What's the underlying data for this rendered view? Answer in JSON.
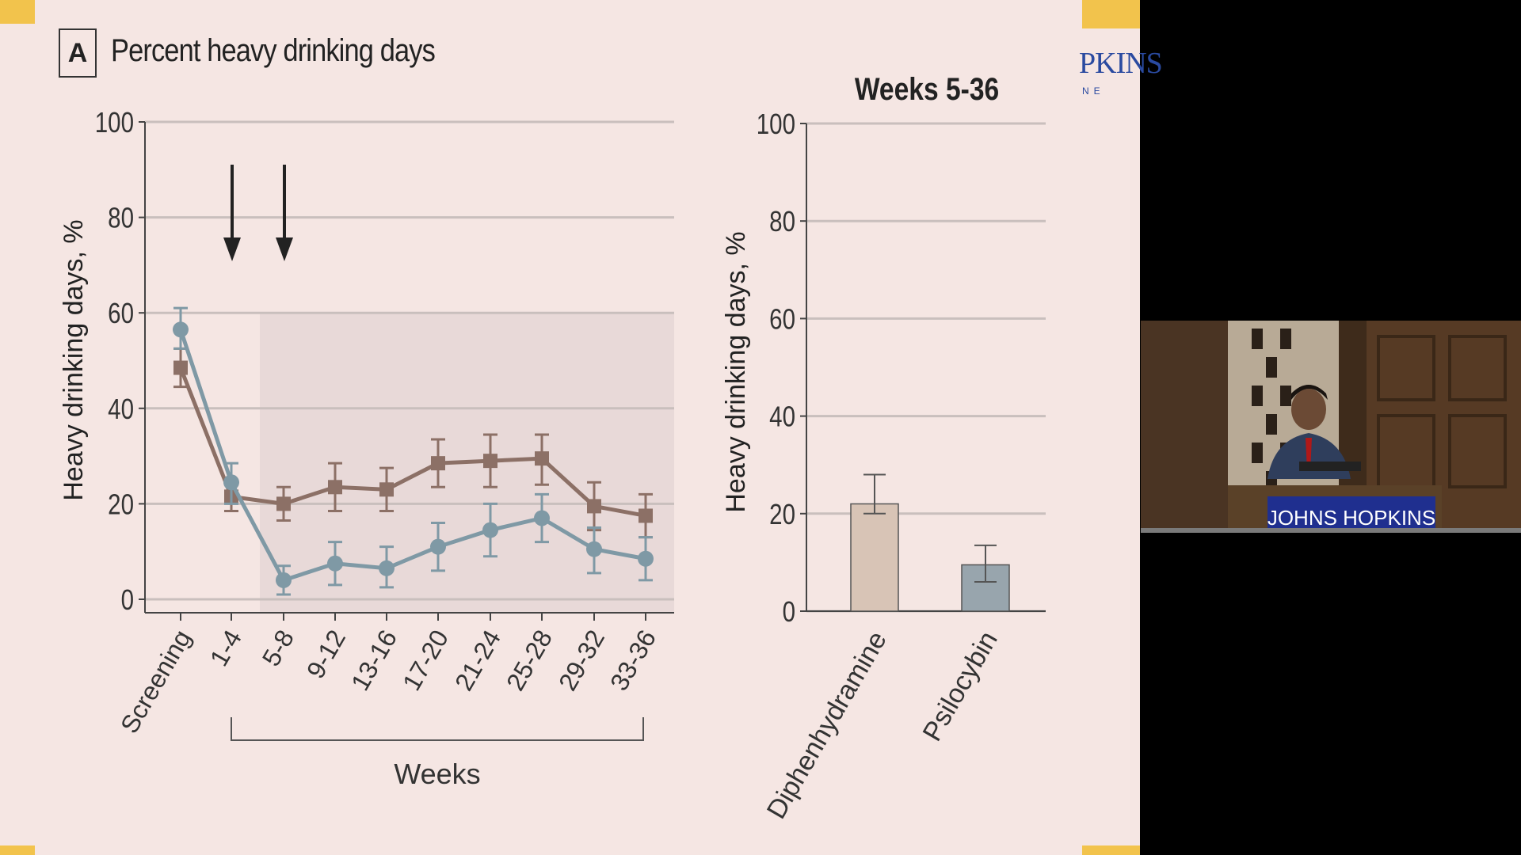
{
  "panel": {
    "letter": "A",
    "title": "Percent heavy drinking days"
  },
  "logo_fragment": {
    "main": "PKINS",
    "sub": "NE"
  },
  "colors": {
    "diphenhydramine": "#8c7066",
    "psilocybin": "#7f99a5",
    "diph_bar": "#d8c4b6",
    "psil_bar": "#98a5ad",
    "slide_bg": "#f5e6e3",
    "shade": "#e8d9d8",
    "accent_corner": "#f2c34c"
  },
  "chart_data": [
    {
      "type": "line",
      "ylabel": "Heavy drinking days, %",
      "xlabel": "Weeks",
      "categories": [
        "Screening",
        "1-4",
        "5-8",
        "9-12",
        "13-16",
        "17-20",
        "21-24",
        "25-28",
        "29-32",
        "33-36"
      ],
      "ylim": [
        0,
        100
      ],
      "yticks": [
        0,
        20,
        40,
        60,
        80,
        100
      ],
      "grid": true,
      "series": [
        {
          "marker": "square",
          "values": [
            48.5,
            21.5,
            20,
            23.5,
            23,
            28.5,
            29,
            29.5,
            19.5,
            17.5
          ],
          "err_low": [
            44.5,
            18.5,
            16.5,
            18.5,
            18.5,
            23.5,
            23.5,
            24,
            14.5,
            13
          ],
          "err_high": [
            52.5,
            24.5,
            23.5,
            28.5,
            27.5,
            33.5,
            34.5,
            34.5,
            24.5,
            22
          ]
        },
        {
          "marker": "circle",
          "values": [
            56.5,
            24.5,
            4,
            7.5,
            6.5,
            11,
            14.5,
            17,
            10.5,
            8.5
          ],
          "err_low": [
            52.5,
            20,
            1,
            3,
            2.5,
            6,
            9,
            12,
            5.5,
            4
          ],
          "err_high": [
            61,
            28.5,
            7,
            12,
            11,
            16,
            20,
            22,
            15,
            13
          ]
        }
      ],
      "arrows_at": [
        "1-4",
        "5-8"
      ],
      "shaded_from": "5-8"
    },
    {
      "type": "bar",
      "title": "Weeks 5-36",
      "ylabel": "Heavy drinking days, %",
      "categories": [
        "Diphenhydramine",
        "Psilocybin"
      ],
      "values": [
        22,
        9.5
      ],
      "err_low": [
        20,
        6
      ],
      "err_high": [
        28,
        13.5
      ],
      "ylim": [
        0,
        100
      ],
      "yticks": [
        0,
        20,
        40,
        60,
        80,
        100
      ],
      "grid": true
    }
  ],
  "video": {
    "podium_text": "JOHNS HOPKINS"
  }
}
